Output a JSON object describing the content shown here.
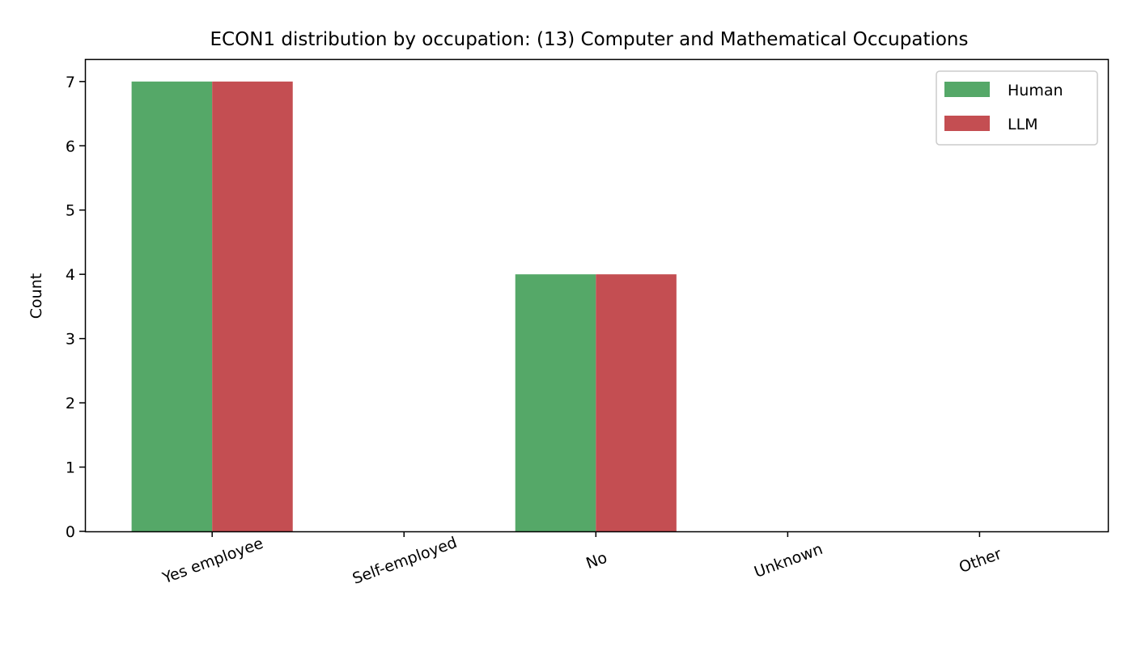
{
  "colors": {
    "human": "#55a868",
    "llm": "#c44e52",
    "axis": "#000000",
    "legend_border": "#cccccc",
    "background": "#ffffff"
  },
  "chart_data": {
    "type": "bar",
    "title": "ECON1 distribution by occupation: (13) Computer and Mathematical Occupations",
    "xlabel": "",
    "ylabel": "Count",
    "categories": [
      "Yes employee",
      "Self-employed",
      "No",
      "Unknown",
      "Other"
    ],
    "series": [
      {
        "name": "Human",
        "values": [
          7,
          0,
          4,
          0,
          0
        ]
      },
      {
        "name": "LLM",
        "values": [
          7,
          0,
          4,
          0,
          0
        ]
      }
    ],
    "ylim": [
      0,
      7.35
    ],
    "yticks": [
      0,
      1,
      2,
      3,
      4,
      5,
      6,
      7
    ],
    "xtick_rotation": -20,
    "grid": false,
    "legend_placement": "top-right"
  }
}
